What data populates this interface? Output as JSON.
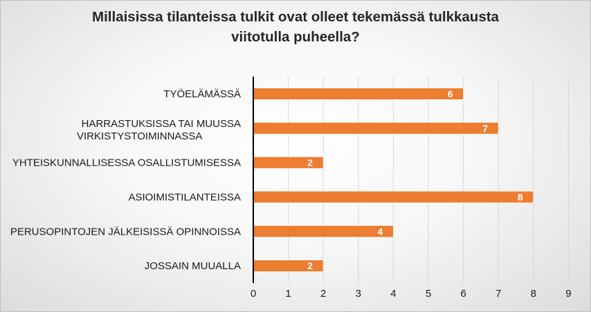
{
  "chart_data": {
    "type": "bar",
    "orientation": "horizontal",
    "title_lines": [
      "Millaisissa tilanteissa tulkit ovat olleet tekemässä tulkkausta",
      "viitotulla puheella?"
    ],
    "categories": [
      [
        "TYÖELÄMÄSSÄ"
      ],
      [
        "HARRASTUKSISSA TAI MUUSSA",
        "VIRKISTYSTOIMINNASSA"
      ],
      [
        "YHTEISKUNNALLISESSA OSALLISTUMISESSA"
      ],
      [
        "ASIOIMISTILANTEISSA"
      ],
      [
        "PERUSOPINTOJEN JÄLKEISISSÄ OPINNOISSA"
      ],
      [
        "JOSSAIN MUUALLA"
      ]
    ],
    "values": [
      6,
      7,
      2,
      8,
      4,
      2
    ],
    "xlim": [
      0,
      9
    ],
    "xticks": [
      0,
      1,
      2,
      3,
      4,
      5,
      6,
      7,
      8,
      9
    ],
    "grid": "vertical",
    "legend": "none",
    "bar_color": "#ed7d31",
    "data_labels": true
  }
}
